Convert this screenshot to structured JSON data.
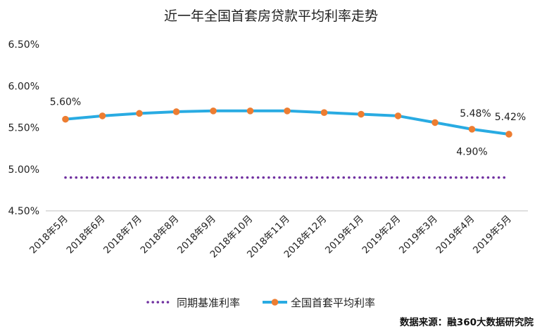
{
  "chart_data": {
    "type": "line",
    "title": "近一年全国首套房贷款平均利率走势",
    "categories": [
      "2018年5月",
      "2018年6月",
      "2018年7月",
      "2018年8月",
      "2018年9月",
      "2018年10月",
      "2018年11月",
      "2018年12月",
      "2019年1月",
      "2019年2月",
      "2019年3月",
      "2019年4月",
      "2019年5月"
    ],
    "series": [
      {
        "name": "同期基准利率",
        "values": [
          4.9,
          4.9,
          4.9,
          4.9,
          4.9,
          4.9,
          4.9,
          4.9,
          4.9,
          4.9,
          4.9,
          4.9,
          4.9
        ],
        "color": "#7030a0",
        "style": "dotted"
      },
      {
        "name": "全国首套平均利率",
        "values": [
          5.6,
          5.64,
          5.67,
          5.69,
          5.7,
          5.7,
          5.7,
          5.68,
          5.66,
          5.64,
          5.56,
          5.48,
          5.42
        ],
        "color": "#29abe2",
        "marker_color": "#ed7d31",
        "style": "solid"
      }
    ],
    "yticks": [
      "4.50%",
      "5.00%",
      "5.50%",
      "6.00%",
      "6.50%"
    ],
    "ylim": [
      4.5,
      6.5
    ],
    "data_labels": [
      {
        "series": 1,
        "index": 0,
        "text": "5.60%"
      },
      {
        "series": 1,
        "index": 11,
        "text": "5.48%"
      },
      {
        "series": 1,
        "index": 12,
        "text": "5.42%"
      },
      {
        "series": 0,
        "index": 11,
        "text": "4.90%"
      }
    ],
    "legend_position": "bottom",
    "grid": false
  },
  "source_text": "数据来源：融360大数据研究院"
}
